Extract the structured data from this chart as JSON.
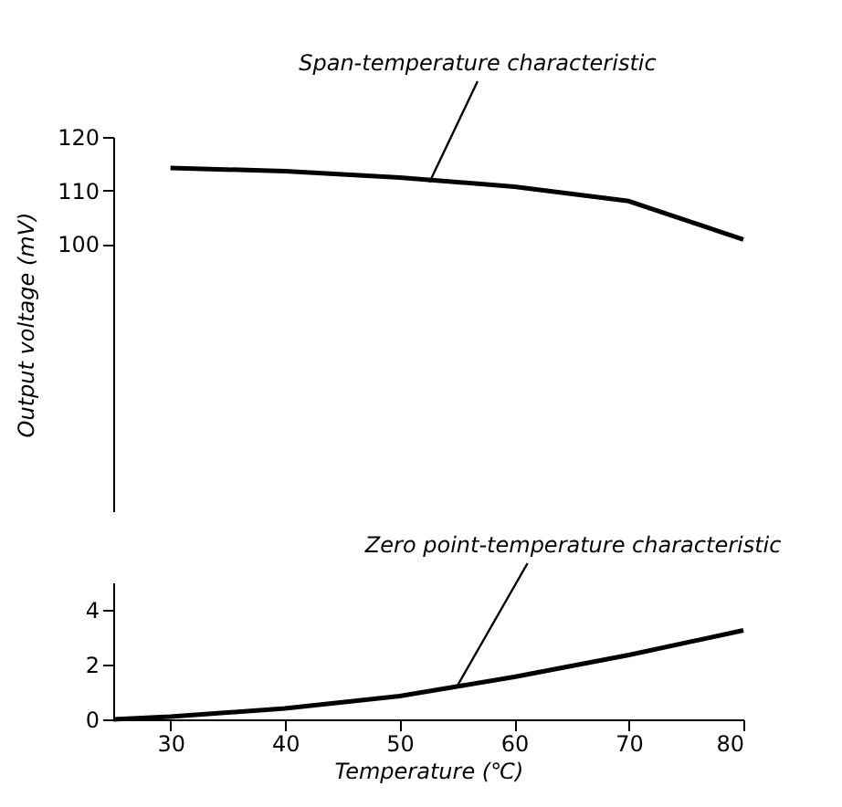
{
  "chart_data": [
    {
      "type": "line",
      "ylabel": "Output voltage (mV)",
      "xlim": [
        25,
        80
      ],
      "ylim": [
        50,
        120
      ],
      "yticks": [
        100,
        110,
        120
      ],
      "tick_labels": "y",
      "color": "#000000",
      "x": [
        30,
        40,
        50,
        60,
        70,
        80
      ],
      "values": [
        114.2,
        113.6,
        112.4,
        110.7,
        108,
        100.8
      ],
      "annotations": [
        {
          "text": "Span-temperature characteristic",
          "x": 52.6,
          "y": 111.5
        }
      ]
    },
    {
      "type": "line",
      "xlabel": "Temperature (℃)",
      "xlim": [
        25,
        80
      ],
      "ylim": [
        0,
        5
      ],
      "yticks": [
        0,
        2,
        4
      ],
      "xticks": [
        30,
        40,
        50,
        60,
        70,
        80
      ],
      "color": "#000000",
      "x": [
        25,
        30,
        40,
        50,
        55,
        60,
        70,
        80
      ],
      "values": [
        0,
        0.1,
        0.4,
        0.85,
        1.2,
        1.55,
        2.35,
        3.25
      ],
      "annotations": [
        {
          "text": "Zero point-temperature characteristic",
          "x": 55,
          "y": 1.2
        }
      ]
    }
  ]
}
